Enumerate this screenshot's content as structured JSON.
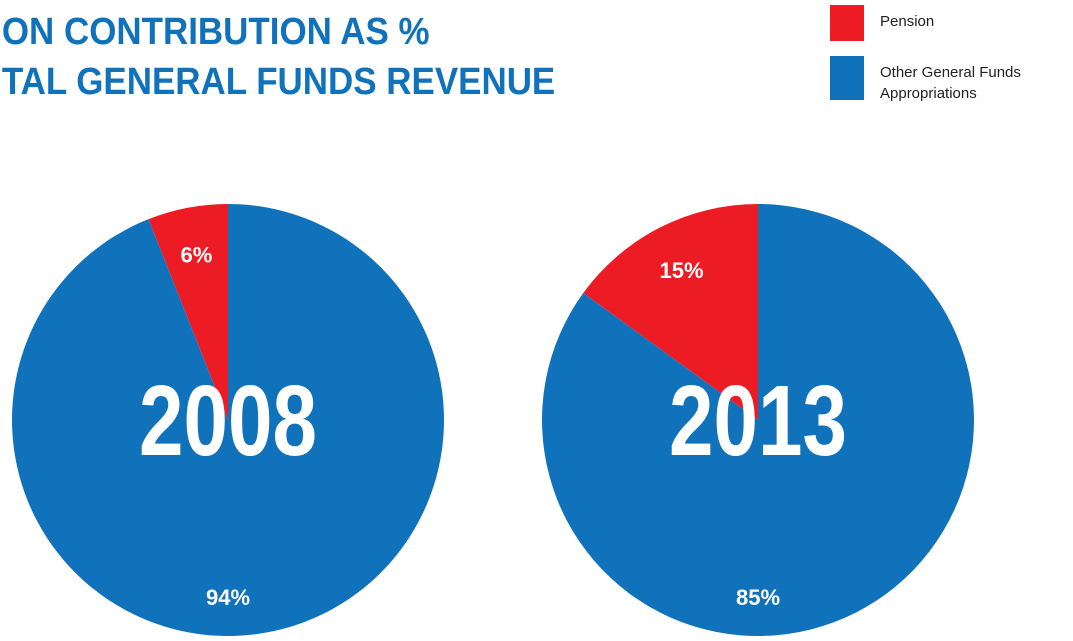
{
  "chart_data": [
    {
      "type": "pie",
      "title": [
        "ON CONTRIBUTION AS %",
        "TAL GENERAL FUNDS REVENUE"
      ],
      "label": "2008",
      "categories": [
        "Pension",
        "Other General Funds Appropriations"
      ],
      "values": [
        6,
        94
      ],
      "value_labels": [
        "6%",
        "94%"
      ],
      "colors": [
        "#ed1c24",
        "#1172bc"
      ]
    },
    {
      "type": "pie",
      "label": "2013",
      "categories": [
        "Pension",
        "Other General Funds Appropriations"
      ],
      "values": [
        15,
        85
      ],
      "value_labels": [
        "15%",
        "85%"
      ],
      "colors": [
        "#ed1c24",
        "#1172bc"
      ]
    }
  ]
}
